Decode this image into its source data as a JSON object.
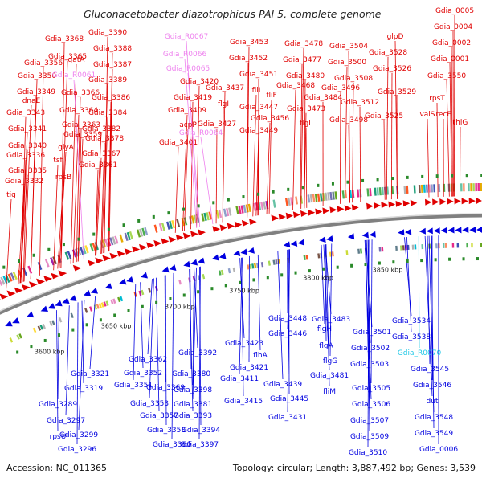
{
  "title": "Gluconacetobacter diazotrophicus PAI 5, complete genome",
  "footer": {
    "accession": "Accession: NC_011365",
    "summary": "Topology: circular; Length: 3,887,492 bp; Genes: 3,539"
  },
  "colors": {
    "forward": "#e00000",
    "reverse": "#0000e0",
    "rna_forward": "#ee82ee",
    "rna_reverse": "#1ec8e6",
    "backbone": "#808080",
    "tick_marker": "#2a8a2a"
  },
  "kbp_labels": [
    "3600 kbp",
    "3650 kbp",
    "3700 kbp",
    "3750 kbp",
    "3800 kbp",
    "3850 kbp"
  ],
  "forward_labels": [
    "Gdia_0005",
    "Gdia_0004",
    "Gdia_0002",
    "Gdia_0001",
    "Gdia_3550",
    "thiG",
    "recF",
    "rpsT",
    "valS",
    "glpD",
    "Gdia_3528",
    "Gdia_3526",
    "Gdia_3529",
    "Gdia_3525",
    "Gdia_3504",
    "Gdia_3500",
    "Gdia_3508",
    "Gdia_3496",
    "Gdia_3512",
    "Gdia_3498",
    "Gdia_3478",
    "Gdia_3477",
    "Gdia_3480",
    "Gdia_3484",
    "flgL",
    "Gdia_3468",
    "Gdia_3473",
    "Gdia_3453",
    "Gdia_3452",
    "Gdia_3451",
    "fliI",
    "fliF",
    "Gdia_3437",
    "Gdia_3447",
    "flgI",
    "Gdia_3456",
    "Gdia_3449",
    "Gdia_3420",
    "Gdia_3419",
    "Gdia_3427",
    "Gdia_3409",
    "acpP",
    "Gdia_3401",
    "Gdia_3390",
    "Gdia_3368",
    "Gdia_3365",
    "gatA",
    "Gdia_3388",
    "Gdia_3387",
    "Gdia_3356",
    "Gdia_3389",
    "Gdia_3350",
    "Gdia_3349",
    "Gdia_3366",
    "Gdia_3386",
    "dnaE",
    "Gdia_3364",
    "Gdia_3384",
    "Gdia_3343",
    "Gdia_3363",
    "Gdia_3382",
    "Gdia_3341",
    "Gdia_3359",
    "Gdia_3378",
    "Gdia_3340",
    "glyA",
    "Gdia_3367",
    "Gdia_3336",
    "tsf",
    "Gdia_3361",
    "Gdia_3335",
    "rpsB",
    "Gdia_3332",
    "tig"
  ],
  "forward_rna_labels": [
    "Gdia_R0067",
    "Gdia_R0066",
    "Gdia_R0065",
    "Gdia_R0061",
    "Gdia_R0064"
  ],
  "reverse_labels": [
    "Gdia_3534",
    "Gdia_3538",
    "Gdia_3545",
    "Gdia_3546",
    "dut",
    "Gdia_3548",
    "Gdia_3549",
    "Gdia_0006",
    "Gdia_3501",
    "Gdia_3502",
    "Gdia_3503",
    "Gdia_3505",
    "Gdia_3506",
    "Gdia_3507",
    "Gdia_3509",
    "Gdia_3510",
    "Gdia_3483",
    "flgH",
    "flgA",
    "flgG",
    "Gdia_3481",
    "fliM",
    "Gdia_3448",
    "Gdia_3446",
    "Gdia_3423",
    "flhA",
    "Gdia_3421",
    "Gdia_3411",
    "Gdia_3439",
    "Gdia_3415",
    "Gdia_3445",
    "Gdia_3431",
    "Gdia_3392",
    "Gdia_3380",
    "Gdia_3398",
    "Gdia_3381",
    "Gdia_3393",
    "Gdia_3394",
    "Gdia_3397",
    "Gdia_3362",
    "Gdia_3352",
    "Gdia_3369",
    "Gdia_3351",
    "Gdia_3353",
    "Gdia_3357",
    "Gdia_3358",
    "Gdia_3360",
    "Gdia_3321",
    "Gdia_3319",
    "Gdia_3289",
    "Gdia_3297",
    "Gdia_3299",
    "rpsU",
    "Gdia_3296"
  ],
  "reverse_rna_labels": [
    "Gdia_R0070"
  ]
}
